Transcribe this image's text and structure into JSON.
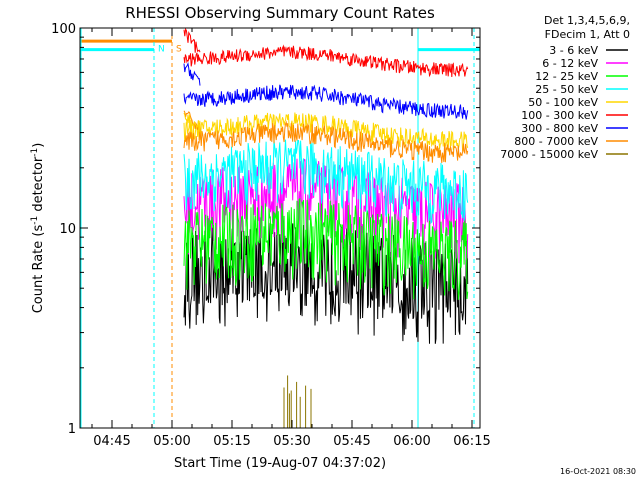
{
  "chart_data": {
    "type": "line",
    "title": "RHESSI Observing Summary Count Rates",
    "xlabel": "Start Time (19-Aug-07 04:37:02)",
    "ylabel_main": "Count Rate (s",
    "ylabel_sup1": "-1",
    "ylabel_mid": " detector",
    "ylabel_sup2": "-1",
    "ylabel_end": ")",
    "yscale": "log",
    "ylim": [
      1,
      100
    ],
    "y_ticks": [
      {
        "value": 1,
        "label": "1"
      },
      {
        "value": 10,
        "label": "10"
      },
      {
        "value": 100,
        "label": "100"
      }
    ],
    "xlim_minutes": [
      0,
      100
    ],
    "x_ticks": [
      {
        "minute": 8,
        "label": "04:45"
      },
      {
        "minute": 23,
        "label": "05:00"
      },
      {
        "minute": 38,
        "label": "05:15"
      },
      {
        "minute": 53,
        "label": "05:30"
      },
      {
        "minute": 68,
        "label": "05:45"
      },
      {
        "minute": 83,
        "label": "06:00"
      },
      {
        "minute": 98,
        "label": "06:15"
      }
    ],
    "legend_header": [
      "Det 1,3,4,5,6,9,",
      "FDecim 1, Att 0"
    ],
    "series": [
      {
        "name": "3 - 6 keV",
        "color": "#000000",
        "start": 26.0,
        "end": 97,
        "base": 5.6,
        "bump": 1.1,
        "noise": 0.55,
        "spikes": 0.18
      },
      {
        "name": "6 - 12 keV",
        "color": "#ff00ff",
        "start": 26.0,
        "end": 97,
        "base": 11.5,
        "bump": 3.0,
        "noise": 0.45,
        "spikes": 0.0
      },
      {
        "name": "12 - 25 keV",
        "color": "#00ff00",
        "start": 26.0,
        "end": 97,
        "base": 7.6,
        "bump": 1.7,
        "noise": 0.45,
        "spikes": 0.0
      },
      {
        "name": "25 - 50 keV",
        "color": "#00ffff",
        "start": 26.0,
        "end": 97,
        "base": 15.5,
        "bump": 4.0,
        "noise": 0.35,
        "spikes": 0.0
      },
      {
        "name": "50 - 100 keV",
        "color": "#ffd700",
        "start": 26.0,
        "end": 97,
        "base": 27.0,
        "bump": 5.0,
        "noise": 0.12,
        "spikes": 0.0
      },
      {
        "name": "100 - 300 keV",
        "color": "#ff0000",
        "start": 26.0,
        "end": 97,
        "base": 61.0,
        "bump": 10.0,
        "noise": 0.08,
        "spikes": 0.0
      },
      {
        "name": "300 - 800 keV",
        "color": "#0000ff",
        "start": 26.0,
        "end": 97,
        "base": 38.0,
        "bump": 7.0,
        "noise": 0.09,
        "spikes": 0.0
      },
      {
        "name": "800 - 7000 keV",
        "color": "#ff8c00",
        "start": 26.0,
        "end": 97,
        "base": 23.5,
        "bump": 5.0,
        "noise": 0.12,
        "spikes": 0.0
      },
      {
        "name": "7000 - 15000 keV",
        "color": "#8b7500",
        "start": 51,
        "end": 58,
        "base": 1,
        "bump": 0,
        "noise": 0,
        "spikes": 0
      }
    ],
    "startup": [
      {
        "series": "100 - 300 keV",
        "start": 26.0,
        "end": 30,
        "from": 95,
        "to": 75
      },
      {
        "series": "300 - 800 keV",
        "start": 26.0,
        "end": 30,
        "from": 64,
        "to": 55
      },
      {
        "series": "800 - 7000 keV",
        "start": 26.0,
        "end": 30,
        "from": 37,
        "to": 32
      },
      {
        "series": "50 - 100 keV",
        "start": 26.0,
        "end": 30,
        "from": 36,
        "to": 32
      }
    ],
    "flag_bars": [
      {
        "name": "night-before",
        "color": "#00ffff",
        "start": 0,
        "end": 18.5,
        "value": 78
      },
      {
        "name": "saa-before",
        "color": "#ff8c00",
        "start": 0,
        "end": 23.0,
        "value": 86
      },
      {
        "name": "night-after",
        "color": "#00ffff",
        "start": 84.5,
        "end": 100,
        "value": 78
      }
    ],
    "flag_lines": [
      {
        "color": "#00ffff",
        "minute": 18.5,
        "dashed": true
      },
      {
        "color": "#ff8c00",
        "minute": 23.0,
        "dashed": true
      },
      {
        "color": "#00ffff",
        "minute": 84.5,
        "dashed": false
      },
      {
        "color": "#00ffff",
        "minute": 98.5,
        "dashed": true
      }
    ],
    "flag_labels": [
      {
        "text": "N",
        "color": "#00ffff",
        "minute": 19.5
      },
      {
        "text": "S",
        "color": "#ff8c00",
        "minute": 24.0
      }
    ],
    "overlay_cyan_start": 0,
    "overlay_cyan_end": 18.5,
    "overlay_cyan_left_value": 100,
    "overlay_cyan_left_low": 1
  },
  "footer": {
    "generated": "16-Oct-2021 08:30"
  }
}
